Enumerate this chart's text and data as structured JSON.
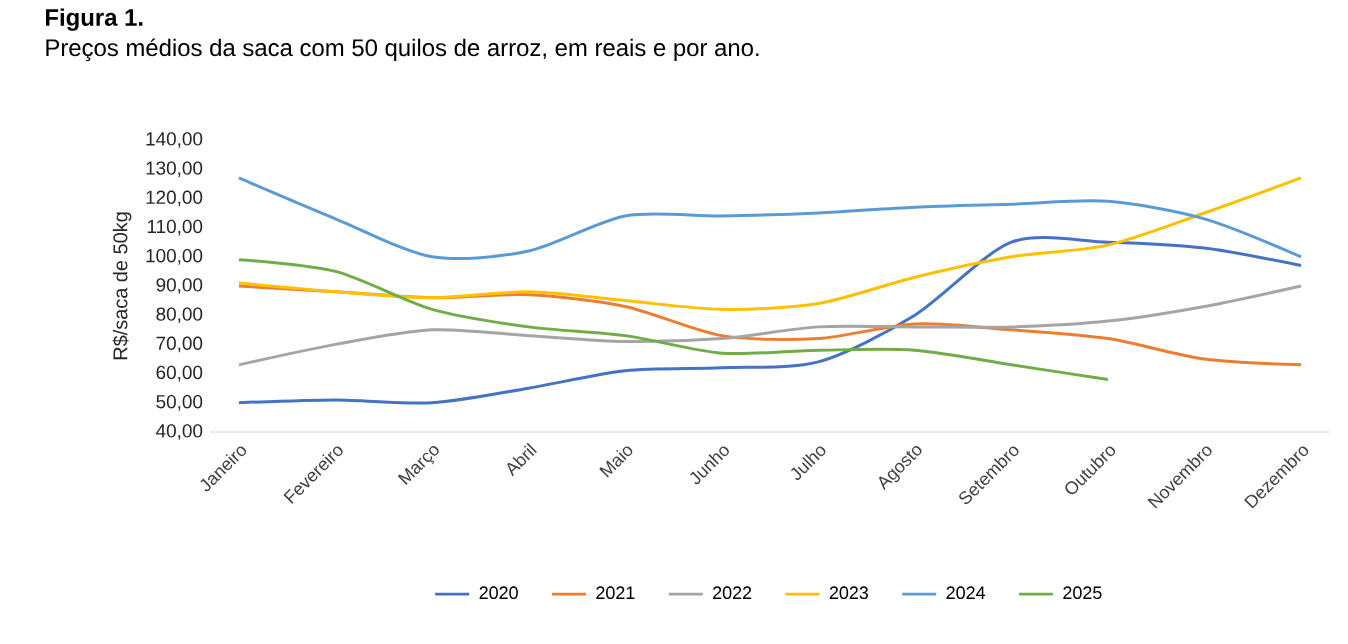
{
  "chart_data": {
    "type": "line",
    "title": "Figura 1.",
    "subtitle": "Preços médios da saca com 50 quilos de arroz, em reais e por ano.",
    "ylabel": "R$/saca de 50kg",
    "categories": [
      "Janeiro",
      "Fevereiro",
      "Março",
      "Abril",
      "Maio",
      "Junho",
      "Julho",
      "Agosto",
      "Setembro",
      "Outubro",
      "Novembro",
      "Dezembro"
    ],
    "ylim": [
      40,
      140
    ],
    "yticks": [
      {
        "value": 40,
        "label": "40,00"
      },
      {
        "value": 50,
        "label": "50,00"
      },
      {
        "value": 60,
        "label": "60,00"
      },
      {
        "value": 70,
        "label": "70,00"
      },
      {
        "value": 80,
        "label": "80,00"
      },
      {
        "value": 90,
        "label": "90,00"
      },
      {
        "value": 100,
        "label": "100,00"
      },
      {
        "value": 110,
        "label": "110,00"
      },
      {
        "value": 120,
        "label": "120,00"
      },
      {
        "value": 130,
        "label": "130,00"
      },
      {
        "value": 140,
        "label": "140,00"
      }
    ],
    "grid": false,
    "legend": "bottom",
    "marker": "none",
    "line_style": "solid",
    "series": [
      {
        "name": "2020",
        "color": "#4472c4",
        "values": [
          50,
          51,
          50,
          55,
          61,
          62,
          64,
          80,
          105,
          105,
          103,
          97
        ]
      },
      {
        "name": "2021",
        "color": "#ed7d31",
        "values": [
          90,
          88,
          86,
          87,
          83,
          73,
          72,
          77,
          75,
          72,
          65,
          63
        ]
      },
      {
        "name": "2022",
        "color": "#a5a5a5",
        "values": [
          63,
          70,
          75,
          73,
          71,
          72,
          76,
          76,
          76,
          78,
          83,
          90
        ]
      },
      {
        "name": "2023",
        "color": "#ffc000",
        "values": [
          91,
          88,
          86,
          88,
          85,
          82,
          84,
          93,
          100,
          104,
          115,
          127
        ]
      },
      {
        "name": "2024",
        "color": "#5b9bd5",
        "values": [
          127,
          113,
          100,
          102,
          114,
          114,
          115,
          117,
          118,
          119,
          113,
          100
        ]
      },
      {
        "name": "2025",
        "color": "#70ad47",
        "values": [
          99,
          95,
          82,
          76,
          73,
          67,
          68,
          68,
          63,
          58,
          null,
          null
        ]
      }
    ]
  }
}
